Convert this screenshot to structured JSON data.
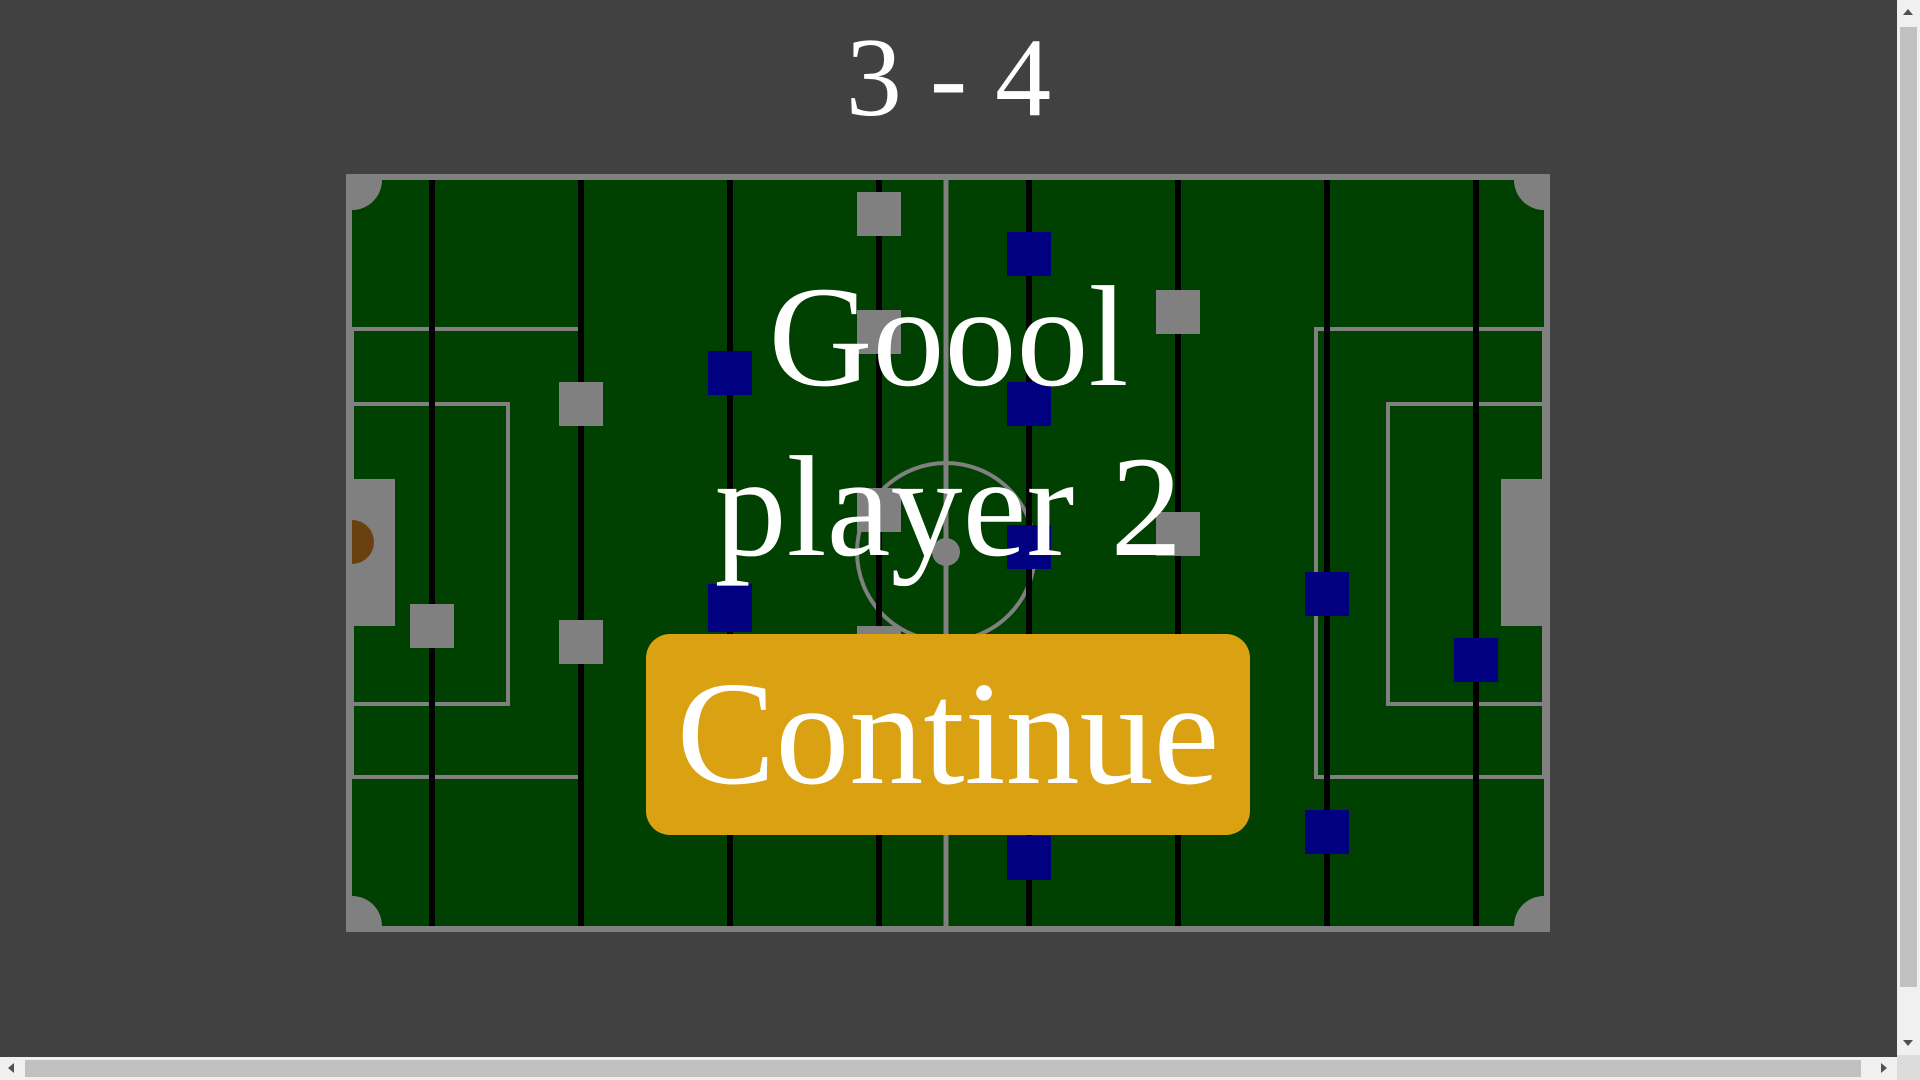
{
  "scoreboard": {
    "home": "3",
    "separator": "-",
    "away": "4"
  },
  "overlay": {
    "line1": "Goool",
    "line2": "player 2",
    "continue_label": "Continue"
  },
  "colors": {
    "background": "#414141",
    "pitch": "#004000",
    "lines": "#808080",
    "rods": "#000000",
    "team1": "#808080",
    "team2": "#000080",
    "ball": "#6b4010",
    "button": "#daa212",
    "text": "#ffffff"
  },
  "rods": [
    {
      "team": 1,
      "players": 1
    },
    {
      "team": 1,
      "players": 2
    },
    {
      "team": 2,
      "players": 3
    },
    {
      "team": 1,
      "players": 5
    },
    {
      "team": 2,
      "players": 5
    },
    {
      "team": 1,
      "players": 3
    },
    {
      "team": 2,
      "players": 2
    },
    {
      "team": 2,
      "players": 1
    }
  ],
  "ball": {
    "side": "left-goal"
  }
}
